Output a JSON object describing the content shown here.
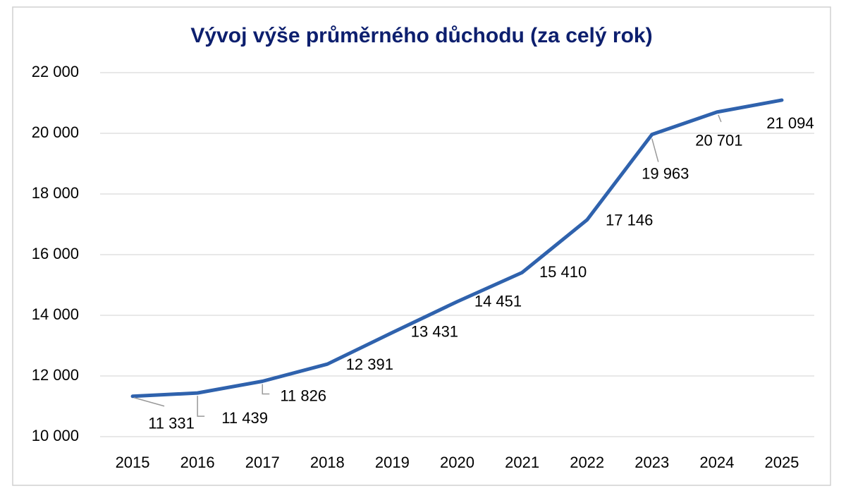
{
  "chart_data": {
    "type": "line",
    "title": "Vývoj výše průměrného důchodu (za celý rok)",
    "categories": [
      "2015",
      "2016",
      "2017",
      "2018",
      "2019",
      "2020",
      "2021",
      "2022",
      "2023",
      "2024",
      "2025"
    ],
    "values": [
      11331,
      11439,
      11826,
      12391,
      13431,
      14451,
      15410,
      17146,
      19963,
      20701,
      21094
    ],
    "value_labels": [
      "11 331",
      "11 439",
      "11 826",
      "12 391",
      "13 431",
      "14 451",
      "15 410",
      "17 146",
      "19 963",
      "20 701",
      "21 094"
    ],
    "color": "#2f62ad",
    "ylim": [
      10000,
      22000
    ],
    "yticks": [
      {
        "value": 10000,
        "label": "10 000"
      },
      {
        "value": 12000,
        "label": "12 000"
      },
      {
        "value": 14000,
        "label": "14 000"
      },
      {
        "value": 16000,
        "label": "16 000"
      },
      {
        "value": 18000,
        "label": "18 000"
      },
      {
        "value": 20000,
        "label": "20 000"
      },
      {
        "value": 22000,
        "label": "22 000"
      }
    ],
    "grid": true
  }
}
